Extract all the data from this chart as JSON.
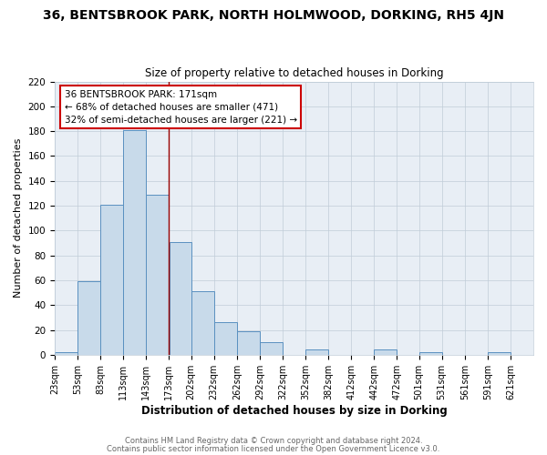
{
  "title_line1": "36, BENTSBROOK PARK, NORTH HOLMWOOD, DORKING, RH5 4JN",
  "title_line2": "Size of property relative to detached houses in Dorking",
  "xlabel": "Distribution of detached houses by size in Dorking",
  "ylabel": "Number of detached properties",
  "bar_left_edges": [
    23,
    53,
    83,
    113,
    143,
    173,
    202,
    232,
    262,
    292,
    322,
    352,
    382,
    412,
    442,
    472,
    501,
    531,
    561,
    591
  ],
  "bar_widths": [
    30,
    30,
    30,
    30,
    30,
    29,
    30,
    30,
    30,
    30,
    30,
    30,
    30,
    30,
    30,
    29,
    30,
    30,
    30,
    30
  ],
  "bar_heights": [
    2,
    59,
    121,
    181,
    129,
    91,
    51,
    26,
    19,
    10,
    0,
    4,
    0,
    0,
    4,
    0,
    2,
    0,
    0,
    2
  ],
  "bar_color": "#c8daea",
  "bar_edge_color": "#5a90c0",
  "tick_labels": [
    "23sqm",
    "53sqm",
    "83sqm",
    "113sqm",
    "143sqm",
    "173sqm",
    "202sqm",
    "232sqm",
    "262sqm",
    "292sqm",
    "322sqm",
    "352sqm",
    "382sqm",
    "412sqm",
    "442sqm",
    "472sqm",
    "501sqm",
    "531sqm",
    "561sqm",
    "591sqm",
    "621sqm"
  ],
  "tick_positions": [
    23,
    53,
    83,
    113,
    143,
    173,
    202,
    232,
    262,
    292,
    322,
    352,
    382,
    412,
    442,
    472,
    501,
    531,
    561,
    591,
    621
  ],
  "ylim": [
    0,
    220
  ],
  "yticks": [
    0,
    20,
    40,
    60,
    80,
    100,
    120,
    140,
    160,
    180,
    200,
    220
  ],
  "xlim_left": 23,
  "xlim_right": 651,
  "vline_x": 173,
  "vline_color": "#990000",
  "annotation_text": "36 BENTSBROOK PARK: 171sqm\n← 68% of detached houses are smaller (471)\n32% of semi-detached houses are larger (221) →",
  "bg_color": "#ffffff",
  "plot_bg_color": "#e8eef5",
  "grid_color": "#c0ccd8",
  "footer_line1": "Contains HM Land Registry data © Crown copyright and database right 2024.",
  "footer_line2": "Contains public sector information licensed under the Open Government Licence v3.0."
}
